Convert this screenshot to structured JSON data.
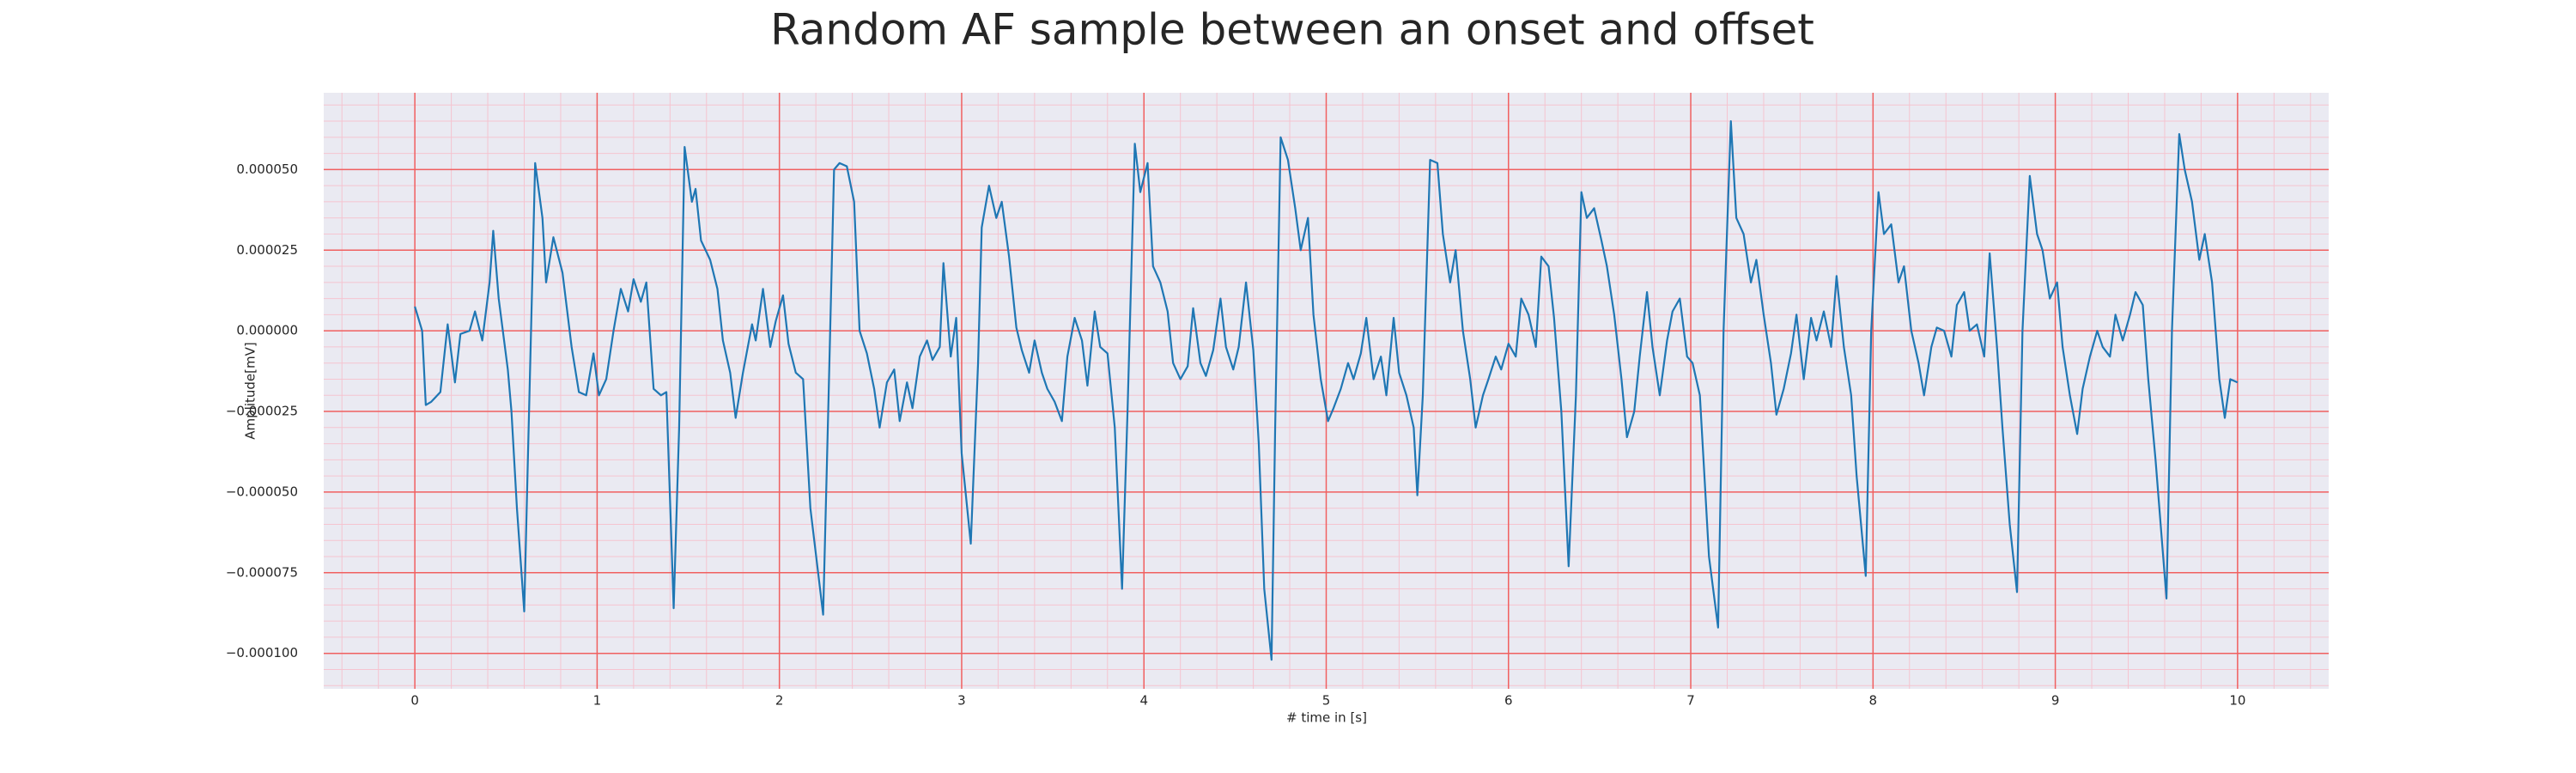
{
  "chart_data": {
    "type": "line",
    "title": "Random AF sample between an onset and offset",
    "xlabel": "# time in [s]",
    "ylabel": "Amplitude[mV]",
    "color": "#1f77b4",
    "grid": true,
    "grid_color": "#f06060",
    "minor_grid": {
      "x": 0.2,
      "y": 5e-06,
      "color": "#f5c4d0"
    },
    "background": "#eaeaf2",
    "xlim": [
      -0.5,
      10.5
    ],
    "ylim": [
      -0.000111,
      7.38e-05
    ],
    "xticks": [
      0,
      1,
      2,
      3,
      4,
      5,
      6,
      7,
      8,
      9,
      10
    ],
    "yticks": [
      {
        "value": -0.0001,
        "label": "−0.000100"
      },
      {
        "value": -7.5e-05,
        "label": "−0.000075"
      },
      {
        "value": -5e-05,
        "label": "−0.000050"
      },
      {
        "value": -2.5e-05,
        "label": "−0.000025"
      },
      {
        "value": 0,
        "label": "0.000000"
      },
      {
        "value": 2.5e-05,
        "label": "0.000025"
      },
      {
        "value": 5e-05,
        "label": "0.000050"
      }
    ],
    "x": [
      0,
      0.04,
      0.06,
      0.09,
      0.14,
      0.18,
      0.22,
      0.25,
      0.3,
      0.33,
      0.37,
      0.41,
      0.43,
      0.46,
      0.51,
      0.53,
      0.56,
      0.6,
      0.62,
      0.66,
      0.7,
      0.72,
      0.76,
      0.81,
      0.86,
      0.9,
      0.94,
      0.98,
      1.01,
      1.05,
      1.09,
      1.13,
      1.17,
      1.2,
      1.24,
      1.27,
      1.31,
      1.35,
      1.38,
      1.42,
      1.45,
      1.48,
      1.52,
      1.54,
      1.57,
      1.62,
      1.66,
      1.69,
      1.73,
      1.76,
      1.8,
      1.85,
      1.87,
      1.91,
      1.95,
      1.98,
      2.02,
      2.05,
      2.09,
      2.13,
      2.17,
      2.24,
      2.27,
      2.3,
      2.33,
      2.37,
      2.41,
      2.44,
      2.48,
      2.52,
      2.55,
      2.59,
      2.63,
      2.66,
      2.7,
      2.73,
      2.77,
      2.81,
      2.84,
      2.88,
      2.9,
      2.94,
      2.97,
      3.0,
      3.05,
      3.09,
      3.11,
      3.15,
      3.19,
      3.22,
      3.26,
      3.3,
      3.33,
      3.37,
      3.4,
      3.44,
      3.47,
      3.51,
      3.55,
      3.58,
      3.62,
      3.66,
      3.69,
      3.73,
      3.76,
      3.8,
      3.84,
      3.88,
      3.91,
      3.95,
      3.98,
      4.02,
      4.05,
      4.09,
      4.13,
      4.16,
      4.2,
      4.24,
      4.27,
      4.31,
      4.34,
      4.38,
      4.42,
      4.45,
      4.49,
      4.52,
      4.56,
      4.6,
      4.63,
      4.66,
      4.7,
      4.72,
      4.75,
      4.79,
      4.83,
      4.86,
      4.9,
      4.93,
      4.97,
      5.01,
      5.04,
      5.08,
      5.12,
      5.15,
      5.19,
      5.22,
      5.26,
      5.3,
      5.33,
      5.37,
      5.4,
      5.44,
      5.48,
      5.5,
      5.53,
      5.57,
      5.61,
      5.64,
      5.68,
      5.71,
      5.75,
      5.79,
      5.82,
      5.86,
      5.89,
      5.93,
      5.96,
      6.0,
      6.04,
      6.07,
      6.11,
      6.15,
      6.18,
      6.22,
      6.25,
      6.29,
      6.33,
      6.37,
      6.4,
      6.43,
      6.47,
      6.51,
      6.54,
      6.58,
      6.62,
      6.65,
      6.69,
      6.72,
      6.76,
      6.79,
      6.83,
      6.87,
      6.9,
      6.94,
      6.98,
      7.01,
      7.05,
      7.1,
      7.15,
      7.18,
      7.22,
      7.25,
      7.29,
      7.33,
      7.36,
      7.4,
      7.44,
      7.47,
      7.51,
      7.55,
      7.58,
      7.62,
      7.66,
      7.69,
      7.73,
      7.77,
      7.8,
      7.84,
      7.88,
      7.91,
      7.96,
      7.99,
      8.03,
      8.06,
      8.1,
      8.14,
      8.17,
      8.21,
      8.25,
      8.28,
      8.32,
      8.35,
      8.39,
      8.43,
      8.46,
      8.5,
      8.53,
      8.57,
      8.61,
      8.64,
      8.68,
      8.71,
      8.75,
      8.79,
      8.82,
      8.86,
      8.9,
      8.93,
      8.97,
      9.01,
      9.04,
      9.08,
      9.12,
      9.15,
      9.19,
      9.23,
      9.26,
      9.3,
      9.33,
      9.37,
      9.41,
      9.44,
      9.48,
      9.51,
      9.55,
      9.61,
      9.64,
      9.68,
      9.71,
      9.75,
      9.79,
      9.82,
      9.86,
      9.9,
      9.93,
      9.96,
      10.0
    ],
    "values": [
      7.5e-06,
      0,
      -2.3e-05,
      -2.2e-05,
      -1.9e-05,
      2e-06,
      -1.6e-05,
      -1e-06,
      0,
      6e-06,
      -3e-06,
      1.5e-05,
      3.1e-05,
      1e-05,
      -1.2e-05,
      -2.5e-05,
      -5.5e-05,
      -8.7e-05,
      -4e-05,
      5.2e-05,
      3.5e-05,
      1.5e-05,
      2.9e-05,
      1.8e-05,
      -5e-06,
      -1.9e-05,
      -2e-05,
      -7e-06,
      -2e-05,
      -1.5e-05,
      0,
      1.3e-05,
      6e-06,
      1.6e-05,
      9e-06,
      1.5e-05,
      -1.8e-05,
      -2e-05,
      -1.9e-05,
      -8.6e-05,
      -3e-05,
      5.7e-05,
      4e-05,
      4.4e-05,
      2.8e-05,
      2.2e-05,
      1.3e-05,
      -3e-06,
      -1.3e-05,
      -2.7e-05,
      -1.3e-05,
      2e-06,
      -3e-06,
      1.3e-05,
      -5e-06,
      3e-06,
      1.1e-05,
      -4e-06,
      -1.3e-05,
      -1.5e-05,
      -5.5e-05,
      -8.8e-05,
      -2e-05,
      5e-05,
      5.2e-05,
      5.1e-05,
      4e-05,
      0,
      -7e-06,
      -1.8e-05,
      -3e-05,
      -1.6e-05,
      -1.2e-05,
      -2.8e-05,
      -1.6e-05,
      -2.4e-05,
      -8e-06,
      -3e-06,
      -9e-06,
      -5e-06,
      2.1e-05,
      -8e-06,
      4e-06,
      -3.8e-05,
      -6.6e-05,
      -1e-05,
      3.2e-05,
      4.5e-05,
      3.5e-05,
      4e-05,
      2.3e-05,
      1e-06,
      -6e-06,
      -1.3e-05,
      -3e-06,
      -1.3e-05,
      -1.8e-05,
      -2.2e-05,
      -2.8e-05,
      -8e-06,
      4e-06,
      -3e-06,
      -1.7e-05,
      6e-06,
      -5e-06,
      -7e-06,
      -3e-05,
      -8e-05,
      -2.5e-05,
      5.8e-05,
      4.3e-05,
      5.2e-05,
      2e-05,
      1.5e-05,
      6e-06,
      -1e-05,
      -1.5e-05,
      -1.1e-05,
      7e-06,
      -1e-05,
      -1.4e-05,
      -6e-06,
      1e-05,
      -5e-06,
      -1.2e-05,
      -5e-06,
      1.5e-05,
      -6e-06,
      -3.5e-05,
      -8e-05,
      -0.000102,
      -3e-05,
      6e-05,
      5.3e-05,
      3.8e-05,
      2.5e-05,
      3.5e-05,
      5e-06,
      -1.5e-05,
      -2.8e-05,
      -2.4e-05,
      -1.8e-05,
      -1e-05,
      -1.5e-05,
      -7e-06,
      4e-06,
      -1.5e-05,
      -8e-06,
      -2e-05,
      4e-06,
      -1.3e-05,
      -2e-05,
      -3e-05,
      -5.1e-05,
      -2e-05,
      5.3e-05,
      5.2e-05,
      3e-05,
      1.5e-05,
      2.5e-05,
      0,
      -1.5e-05,
      -3e-05,
      -2e-05,
      -1.5e-05,
      -8e-06,
      -1.2e-05,
      -4e-06,
      -8e-06,
      1e-05,
      5e-06,
      -5e-06,
      2.3e-05,
      2e-05,
      4e-06,
      -2.5e-05,
      -7.3e-05,
      -2e-05,
      4.3e-05,
      3.5e-05,
      3.8e-05,
      2.8e-05,
      2e-05,
      5e-06,
      -1.5e-05,
      -3.3e-05,
      -2.5e-05,
      -8e-06,
      1.2e-05,
      -5e-06,
      -2e-05,
      -3e-06,
      6e-06,
      1e-05,
      -8e-06,
      -1e-05,
      -2e-05,
      -7e-05,
      -9.2e-05,
      0,
      6.5e-05,
      3.5e-05,
      3e-05,
      1.5e-05,
      2.2e-05,
      5e-06,
      -1e-05,
      -2.6e-05,
      -1.8e-05,
      -7e-06,
      5e-06,
      -1.5e-05,
      4e-06,
      -3e-06,
      6e-06,
      -5e-06,
      1.7e-05,
      -5e-06,
      -2e-05,
      -4.5e-05,
      -7.6e-05,
      0,
      4.3e-05,
      3e-05,
      3.3e-05,
      1.5e-05,
      2e-05,
      0,
      -1e-05,
      -2e-05,
      -5e-06,
      1e-06,
      0,
      -8e-06,
      8e-06,
      1.2e-05,
      0,
      2e-06,
      -8e-06,
      2.4e-05,
      -5e-06,
      -3e-05,
      -6e-05,
      -8.1e-05,
      0,
      4.8e-05,
      3e-05,
      2.5e-05,
      1e-05,
      1.5e-05,
      -5e-06,
      -2e-05,
      -3.2e-05,
      -1.8e-05,
      -8e-06,
      0,
      -5e-06,
      -8e-06,
      5e-06,
      -3e-06,
      5e-06,
      1.2e-05,
      8e-06,
      -1.5e-05,
      -4e-05,
      -8.3e-05,
      0,
      6.1e-05,
      5e-05,
      4e-05,
      2.2e-05,
      3e-05,
      1.5e-05,
      -1.5e-05,
      -2.7e-05,
      -1.5e-05,
      -1.6e-05
    ]
  }
}
